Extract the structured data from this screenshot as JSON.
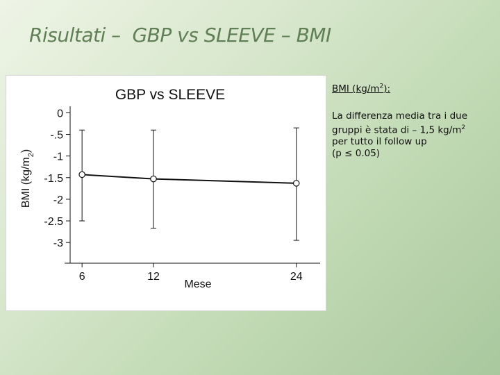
{
  "slide": {
    "title": "Risultati –  GBP vs SLEEVE – BMI"
  },
  "side": {
    "heading_prefix": "BMI (kg/m",
    "heading_sup": "2",
    "heading_suffix": "):",
    "line1": "La differenza media tra i due",
    "line2_prefix": "gruppi è  stata di – 1,5 kg/m",
    "line2_sup": "2",
    "line3": "per tutto il follow  up",
    "line4": "(p ≤ 0.05)"
  },
  "chart_data": {
    "type": "line",
    "title": "GBP vs SLEEVE",
    "xlabel": "Mese",
    "ylabel": "BMI (kg/m2)",
    "ylabel_main": "BMI (kg/m",
    "ylabel_sub": "2",
    "ylabel_end": ")",
    "x": [
      6,
      12,
      24
    ],
    "x_tick_labels": [
      "6",
      "12",
      "24"
    ],
    "y_ticks": [
      0,
      -0.5,
      -1,
      -1.5,
      -2,
      -2.5,
      -3
    ],
    "y_tick_labels": [
      "0",
      "-.5",
      "-1",
      "-1.5",
      "-2",
      "-2.5",
      "-3"
    ],
    "xlim": [
      5,
      26
    ],
    "ylim": [
      -3.35,
      0.15
    ],
    "series": [
      {
        "values": [
          -1.43,
          -1.53,
          -1.63
        ],
        "error_low": [
          -2.5,
          -2.67,
          -2.95
        ],
        "error_high": [
          -0.4,
          -0.4,
          -0.35
        ],
        "color": "#111111"
      }
    ],
    "grid": false,
    "legend": "none"
  }
}
